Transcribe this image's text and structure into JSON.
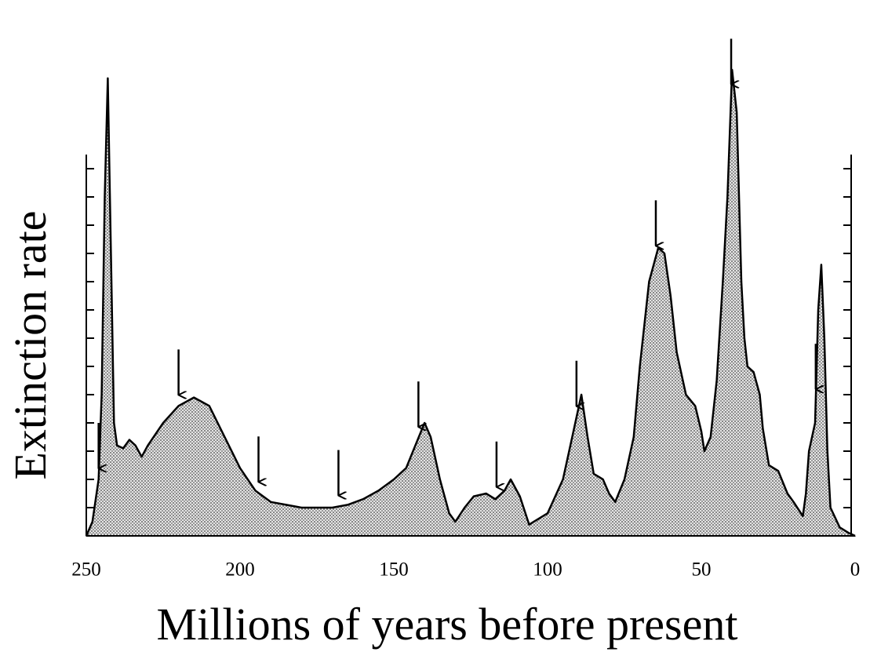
{
  "chart_data": {
    "type": "area",
    "x_label": "Millions of years before present",
    "y_label": "Extinction rate",
    "x": [
      250,
      248,
      246,
      245,
      244,
      243,
      242,
      241,
      240,
      238,
      236,
      234,
      232,
      230,
      225,
      220,
      215,
      210,
      205,
      200,
      195,
      190,
      185,
      180,
      175,
      170,
      165,
      160,
      155,
      150,
      146,
      143,
      140,
      138,
      135,
      132,
      130,
      127,
      124,
      120,
      117,
      114,
      112,
      109,
      106,
      100,
      95,
      92,
      89,
      87,
      85,
      82,
      80,
      78,
      75,
      72,
      70,
      67,
      64,
      62,
      60,
      58,
      55,
      52,
      50,
      49,
      47,
      45,
      43,
      41.5,
      40,
      38.5,
      37,
      36,
      35,
      33,
      31,
      30,
      28,
      25,
      22,
      20,
      17,
      16,
      15,
      13,
      12,
      11,
      10,
      9,
      8,
      5,
      2,
      0
    ],
    "values": [
      0,
      0.5,
      2,
      5,
      12,
      16.2,
      10,
      4,
      3.2,
      3.1,
      3.4,
      3.2,
      2.8,
      3.2,
      4.0,
      4.6,
      4.9,
      4.6,
      3.5,
      2.4,
      1.6,
      1.2,
      1.1,
      1.0,
      1.0,
      1.0,
      1.1,
      1.3,
      1.6,
      2.0,
      2.4,
      3.2,
      4.0,
      3.5,
      2.0,
      0.8,
      0.5,
      1.0,
      1.4,
      1.5,
      1.3,
      1.6,
      2.0,
      1.4,
      0.4,
      0.8,
      2.0,
      3.5,
      5.0,
      3.5,
      2.2,
      2.0,
      1.5,
      1.2,
      2.0,
      3.5,
      6,
      9,
      10.2,
      10.0,
      8.5,
      6.5,
      5.0,
      4.6,
      3.7,
      3.0,
      3.5,
      5.5,
      9,
      12,
      16.5,
      15,
      9,
      7,
      6.0,
      5.8,
      5,
      3.8,
      2.5,
      2.3,
      1.5,
      1.2,
      0.7,
      1.5,
      3,
      4,
      8,
      9.6,
      7,
      3,
      1.0,
      0.3,
      0.1,
      0
    ],
    "color": "#c8c8c8",
    "events": [
      246,
      220,
      194,
      168,
      142,
      116.6,
      90.6,
      64.8,
      40.3,
      12.8
    ],
    "xlim": [
      250,
      0
    ],
    "xticks": [
      250,
      200,
      150,
      100,
      50,
      0
    ],
    "ylim": [
      0,
      13.5
    ],
    "yticks": [
      0,
      1,
      2,
      3,
      4,
      5,
      6,
      7,
      8,
      9,
      10,
      11,
      12,
      13
    ]
  }
}
